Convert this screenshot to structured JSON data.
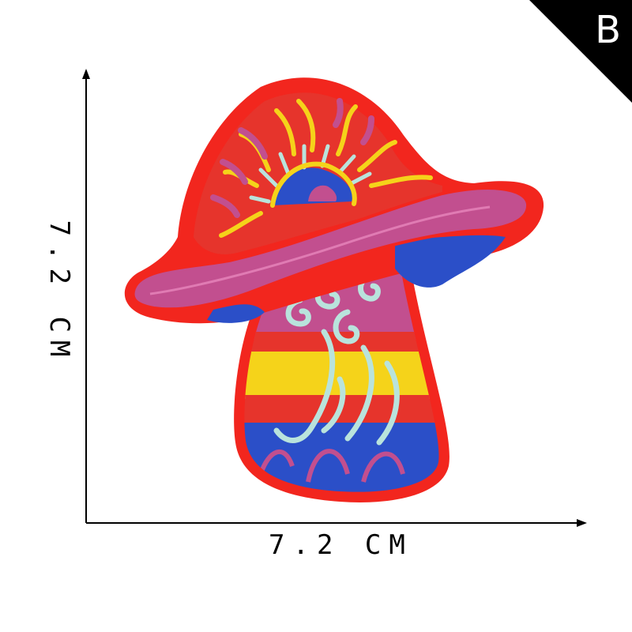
{
  "badge": {
    "letter": "B"
  },
  "dimensions": {
    "width_label": "7.2 CM",
    "height_label": "7.2 CM"
  },
  "colors": {
    "border": "#f2261e",
    "cap_fill": "#e6342c",
    "rim": "#c24f8f",
    "blue": "#2b4fc8",
    "yellow": "#f5d31a",
    "mint": "#b9e3dc",
    "pink": "#d0398a"
  }
}
